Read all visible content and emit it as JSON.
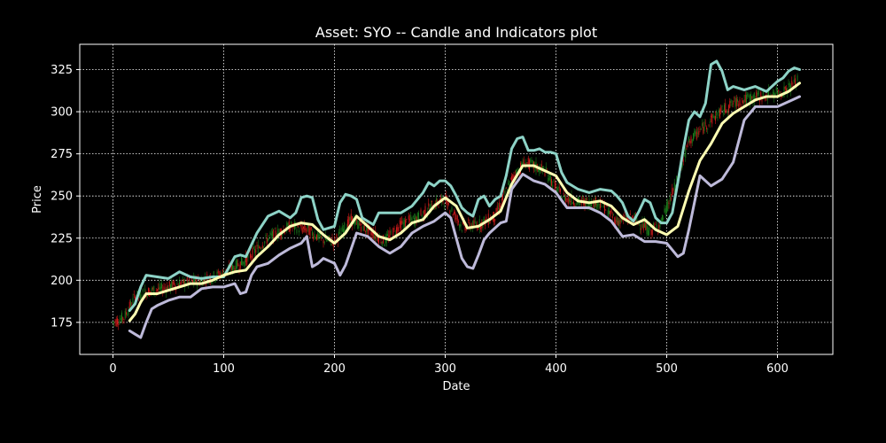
{
  "chart_data": {
    "type": "line",
    "title": "Asset: SYO -- Candle and Indicators plot",
    "xlabel": "Date",
    "ylabel": "Price",
    "xlim": [
      -30,
      650
    ],
    "ylim": [
      156,
      340
    ],
    "xticks": [
      0,
      100,
      200,
      300,
      400,
      500,
      600
    ],
    "yticks": [
      175,
      200,
      225,
      250,
      275,
      300,
      325
    ],
    "grid": true,
    "legend": "none",
    "colors": {
      "background": "#000000",
      "axes": "#ffffff",
      "grid": "#ffffff",
      "up_candle": "#1a7a1a",
      "down_candle": "#cc1a1a",
      "upper_band": "#8dd3c7",
      "middle_line": "#ffffb3",
      "lower_band": "#bebada"
    },
    "price_path": {
      "x": [
        0,
        10,
        20,
        30,
        45,
        60,
        80,
        95,
        105,
        120,
        140,
        160,
        175,
        190,
        200,
        215,
        230,
        245,
        260,
        275,
        290,
        300,
        315,
        330,
        345,
        360,
        372,
        390,
        405,
        420,
        440,
        455,
        470,
        485,
        495,
        510,
        520,
        532,
        545,
        560,
        575,
        590,
        605,
        618
      ],
      "y": [
        175,
        178,
        190,
        193,
        195,
        198,
        200,
        203,
        206,
        212,
        225,
        232,
        230,
        224,
        223,
        236,
        230,
        223,
        233,
        237,
        245,
        248,
        232,
        233,
        238,
        260,
        270,
        265,
        250,
        246,
        246,
        235,
        237,
        229,
        234,
        260,
        282,
        290,
        298,
        305,
        308,
        310,
        312,
        318
      ]
    },
    "series": [
      {
        "key": "upper_band",
        "x": [
          15,
          20,
          25,
          30,
          40,
          50,
          60,
          70,
          80,
          90,
          100,
          105,
          110,
          115,
          120,
          130,
          140,
          150,
          160,
          165,
          170,
          175,
          180,
          185,
          190,
          200,
          205,
          210,
          215,
          220,
          225,
          230,
          235,
          240,
          250,
          260,
          270,
          280,
          285,
          290,
          295,
          300,
          305,
          310,
          315,
          320,
          325,
          330,
          335,
          340,
          345,
          350,
          355,
          360,
          365,
          370,
          375,
          380,
          385,
          390,
          395,
          400,
          405,
          410,
          420,
          430,
          440,
          450,
          455,
          460,
          465,
          470,
          475,
          480,
          485,
          490,
          495,
          500,
          505,
          510,
          515,
          520,
          525,
          530,
          535,
          540,
          545,
          550,
          555,
          560,
          570,
          580,
          590,
          600,
          605,
          610,
          615,
          620
        ],
        "y": [
          182,
          186,
          196,
          203,
          202,
          201,
          205,
          202,
          201,
          202,
          202,
          208,
          214,
          215,
          214,
          228,
          238,
          241,
          237,
          240,
          249,
          250,
          249,
          236,
          230,
          232,
          246,
          251,
          250,
          248,
          237,
          235,
          233,
          240,
          240,
          240,
          244,
          252,
          258,
          256,
          259,
          259,
          256,
          250,
          243,
          240,
          238,
          248,
          250,
          244,
          248,
          250,
          262,
          278,
          284,
          285,
          277,
          277,
          278,
          276,
          276,
          275,
          264,
          258,
          254,
          252,
          254,
          253,
          250,
          246,
          238,
          235,
          241,
          248,
          246,
          237,
          234,
          234,
          240,
          258,
          278,
          295,
          300,
          297,
          305,
          328,
          330,
          324,
          313,
          315,
          313,
          315,
          312,
          318,
          320,
          324,
          326,
          325
        ]
      },
      {
        "key": "middle_line",
        "x": [
          15,
          20,
          25,
          30,
          40,
          50,
          60,
          70,
          80,
          90,
          100,
          110,
          120,
          130,
          140,
          150,
          160,
          170,
          180,
          190,
          200,
          210,
          220,
          230,
          240,
          250,
          260,
          270,
          280,
          290,
          300,
          310,
          320,
          330,
          340,
          350,
          360,
          370,
          380,
          390,
          400,
          410,
          420,
          430,
          440,
          450,
          460,
          470,
          480,
          490,
          500,
          510,
          520,
          530,
          540,
          550,
          560,
          570,
          580,
          590,
          600,
          610,
          620
        ],
        "y": [
          176,
          180,
          187,
          192,
          192,
          194,
          196,
          198,
          198,
          200,
          203,
          205,
          206,
          214,
          220,
          227,
          232,
          234,
          233,
          227,
          222,
          228,
          238,
          232,
          226,
          224,
          228,
          234,
          236,
          244,
          249,
          244,
          231,
          232,
          236,
          241,
          257,
          268,
          268,
          265,
          262,
          252,
          247,
          246,
          247,
          244,
          237,
          233,
          236,
          230,
          227,
          232,
          253,
          271,
          281,
          293,
          299,
          303,
          307,
          309,
          309,
          312,
          317
        ]
      },
      {
        "key": "lower_band",
        "x": [
          15,
          20,
          25,
          30,
          35,
          40,
          50,
          60,
          70,
          80,
          90,
          100,
          110,
          115,
          120,
          125,
          130,
          140,
          150,
          160,
          170,
          175,
          180,
          185,
          190,
          200,
          205,
          210,
          220,
          230,
          240,
          250,
          260,
          270,
          280,
          290,
          300,
          305,
          310,
          315,
          320,
          325,
          330,
          335,
          340,
          350,
          355,
          360,
          370,
          380,
          390,
          400,
          410,
          420,
          430,
          440,
          450,
          460,
          470,
          480,
          490,
          500,
          505,
          510,
          515,
          520,
          530,
          540,
          550,
          560,
          570,
          580,
          590,
          600,
          610,
          620
        ],
        "y": [
          170,
          168,
          166,
          175,
          183,
          185,
          188,
          190,
          190,
          195,
          196,
          196,
          198,
          192,
          193,
          203,
          208,
          210,
          215,
          219,
          222,
          226,
          208,
          210,
          213,
          210,
          203,
          209,
          228,
          226,
          220,
          216,
          220,
          228,
          232,
          235,
          240,
          237,
          225,
          213,
          208,
          207,
          215,
          224,
          228,
          234,
          235,
          254,
          263,
          259,
          257,
          252,
          243,
          243,
          243,
          240,
          235,
          226,
          227,
          223,
          223,
          222,
          218,
          214,
          216,
          230,
          262,
          256,
          260,
          270,
          295,
          303,
          303,
          303,
          306,
          309
        ]
      }
    ]
  }
}
